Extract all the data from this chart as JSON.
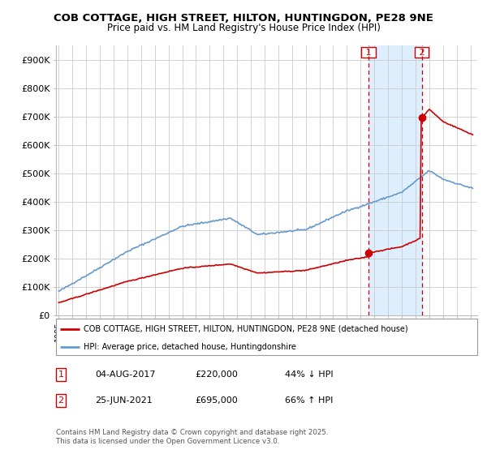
{
  "title": "COB COTTAGE, HIGH STREET, HILTON, HUNTINGDON, PE28 9NE",
  "subtitle": "Price paid vs. HM Land Registry's House Price Index (HPI)",
  "footer": "Contains HM Land Registry data © Crown copyright and database right 2025.\nThis data is licensed under the Open Government Licence v3.0.",
  "legend_line1": "COB COTTAGE, HIGH STREET, HILTON, HUNTINGDON, PE28 9NE (detached house)",
  "legend_line2": "HPI: Average price, detached house, Huntingdonshire",
  "annotation1_label": "1",
  "annotation1_date": "04-AUG-2017",
  "annotation1_price": "£220,000",
  "annotation1_hpi": "44% ↓ HPI",
  "annotation2_label": "2",
  "annotation2_date": "25-JUN-2021",
  "annotation2_price": "£695,000",
  "annotation2_hpi": "66% ↑ HPI",
  "hpi_color": "#6699cc",
  "price_color": "#cc0000",
  "annotation_color": "#cc0000",
  "shade_color": "#ddeeff",
  "background_color": "#ffffff",
  "grid_color": "#cccccc",
  "ylim": [
    0,
    950000
  ],
  "yticks": [
    0,
    100000,
    200000,
    300000,
    400000,
    500000,
    600000,
    700000,
    800000,
    900000
  ],
  "ytick_labels": [
    "£0",
    "£100K",
    "£200K",
    "£300K",
    "£400K",
    "£500K",
    "£600K",
    "£700K",
    "£800K",
    "£900K"
  ],
  "ann1_x": 2017.583,
  "ann1_y": 220000,
  "ann2_x": 2021.458,
  "ann2_y": 695000,
  "xmin": 1994.8,
  "xmax": 2025.5
}
